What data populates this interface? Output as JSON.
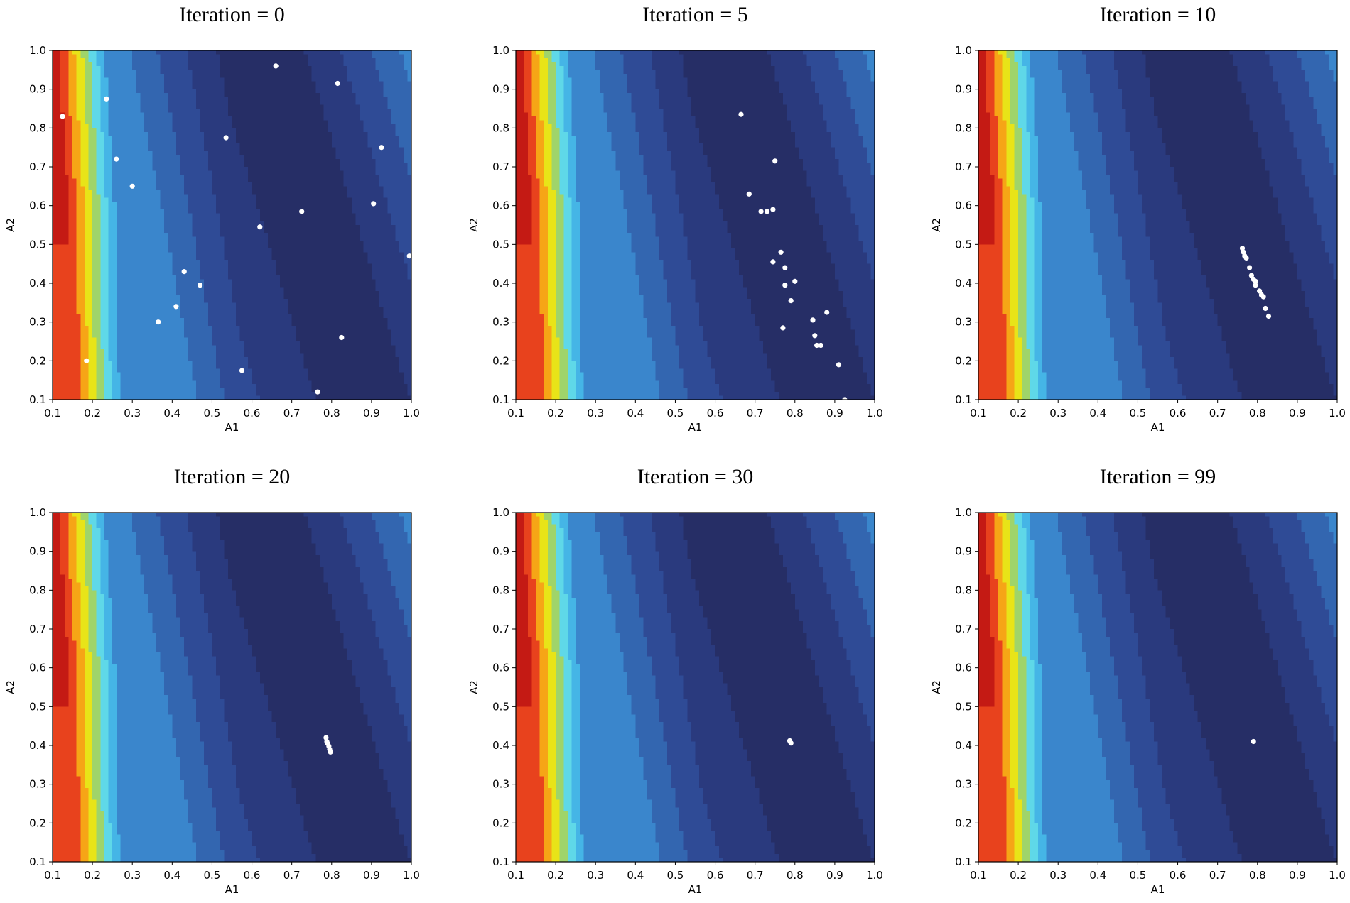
{
  "colors": {
    "background": "#ffffff",
    "point": "#ffffff",
    "colormap": [
      "#262e66",
      "#2a3a7e",
      "#2f4b96",
      "#3366b0",
      "#3a86cc",
      "#45b5e6",
      "#5fd8e8",
      "#9fd46a",
      "#e8e418",
      "#f6a516",
      "#e8421d",
      "#c41a14"
    ]
  },
  "chart_data": [
    {
      "type": "scatter",
      "background": "contour",
      "title": "Iteration = 0",
      "xlabel": "A1",
      "ylabel": "A2",
      "xlim": [
        0.1,
        1.0
      ],
      "ylim": [
        0.1,
        1.0
      ],
      "xticks": [
        "0.1",
        "0.2",
        "0.3",
        "0.4",
        "0.5",
        "0.6",
        "0.7",
        "0.8",
        "0.9",
        "1.0"
      ],
      "yticks": [
        "0.1",
        "0.2",
        "0.3",
        "0.4",
        "0.5",
        "0.6",
        "0.7",
        "0.8",
        "0.9",
        "1.0"
      ],
      "points": [
        [
          0.125,
          0.83
        ],
        [
          0.235,
          0.875
        ],
        [
          0.66,
          0.96
        ],
        [
          0.815,
          0.915
        ],
        [
          0.26,
          0.72
        ],
        [
          0.3,
          0.65
        ],
        [
          0.535,
          0.775
        ],
        [
          0.925,
          0.75
        ],
        [
          0.905,
          0.605
        ],
        [
          0.725,
          0.585
        ],
        [
          0.62,
          0.545
        ],
        [
          0.995,
          0.47
        ],
        [
          0.43,
          0.43
        ],
        [
          0.47,
          0.395
        ],
        [
          0.41,
          0.34
        ],
        [
          0.365,
          0.3
        ],
        [
          0.825,
          0.26
        ],
        [
          0.185,
          0.2
        ],
        [
          0.575,
          0.175
        ],
        [
          0.765,
          0.12
        ]
      ]
    },
    {
      "type": "scatter",
      "background": "contour",
      "title": "Iteration = 5",
      "xlabel": "A1",
      "ylabel": "A2",
      "xlim": [
        0.1,
        1.0
      ],
      "ylim": [
        0.1,
        1.0
      ],
      "xticks": [
        "0.1",
        "0.2",
        "0.3",
        "0.4",
        "0.5",
        "0.6",
        "0.7",
        "0.8",
        "0.9",
        "1.0"
      ],
      "yticks": [
        "0.1",
        "0.2",
        "0.3",
        "0.4",
        "0.5",
        "0.6",
        "0.7",
        "0.8",
        "0.9",
        "1.0"
      ],
      "points": [
        [
          0.665,
          0.835
        ],
        [
          0.75,
          0.715
        ],
        [
          0.685,
          0.63
        ],
        [
          0.715,
          0.585
        ],
        [
          0.73,
          0.585
        ],
        [
          0.745,
          0.59
        ],
        [
          0.765,
          0.48
        ],
        [
          0.745,
          0.455
        ],
        [
          0.775,
          0.44
        ],
        [
          0.8,
          0.405
        ],
        [
          0.775,
          0.395
        ],
        [
          0.79,
          0.355
        ],
        [
          0.88,
          0.325
        ],
        [
          0.845,
          0.305
        ],
        [
          0.77,
          0.285
        ],
        [
          0.85,
          0.265
        ],
        [
          0.855,
          0.24
        ],
        [
          0.865,
          0.24
        ],
        [
          0.91,
          0.19
        ],
        [
          0.925,
          0.1
        ]
      ]
    },
    {
      "type": "scatter",
      "background": "contour",
      "title": "Iteration = 10",
      "xlabel": "A1",
      "ylabel": "A2",
      "xlim": [
        0.1,
        1.0
      ],
      "ylim": [
        0.1,
        1.0
      ],
      "xticks": [
        "0.1",
        "0.2",
        "0.3",
        "0.4",
        "0.5",
        "0.6",
        "0.7",
        "0.8",
        "0.9",
        "1.0"
      ],
      "yticks": [
        "0.1",
        "0.2",
        "0.3",
        "0.4",
        "0.5",
        "0.6",
        "0.7",
        "0.8",
        "0.9",
        "1.0"
      ],
      "points": [
        [
          0.762,
          0.49
        ],
        [
          0.765,
          0.48
        ],
        [
          0.768,
          0.47
        ],
        [
          0.772,
          0.465
        ],
        [
          0.78,
          0.44
        ],
        [
          0.785,
          0.42
        ],
        [
          0.79,
          0.41
        ],
        [
          0.795,
          0.405
        ],
        [
          0.795,
          0.395
        ],
        [
          0.805,
          0.38
        ],
        [
          0.81,
          0.37
        ],
        [
          0.815,
          0.365
        ],
        [
          0.82,
          0.335
        ],
        [
          0.828,
          0.315
        ]
      ]
    },
    {
      "type": "scatter",
      "background": "contour",
      "title": "Iteration = 20",
      "xlabel": "A1",
      "ylabel": "A2",
      "xlim": [
        0.1,
        1.0
      ],
      "ylim": [
        0.1,
        1.0
      ],
      "xticks": [
        "0.1",
        "0.2",
        "0.3",
        "0.4",
        "0.5",
        "0.6",
        "0.7",
        "0.8",
        "0.9",
        "1.0"
      ],
      "yticks": [
        "0.1",
        "0.2",
        "0.3",
        "0.4",
        "0.5",
        "0.6",
        "0.7",
        "0.8",
        "0.9",
        "1.0"
      ],
      "points": [
        [
          0.786,
          0.42
        ],
        [
          0.788,
          0.41
        ],
        [
          0.79,
          0.405
        ],
        [
          0.793,
          0.398
        ],
        [
          0.795,
          0.39
        ],
        [
          0.797,
          0.383
        ]
      ]
    },
    {
      "type": "scatter",
      "background": "contour",
      "title": "Iteration = 30",
      "xlabel": "A1",
      "ylabel": "A2",
      "xlim": [
        0.1,
        1.0
      ],
      "ylim": [
        0.1,
        1.0
      ],
      "xticks": [
        "0.1",
        "0.2",
        "0.3",
        "0.4",
        "0.5",
        "0.6",
        "0.7",
        "0.8",
        "0.9",
        "1.0"
      ],
      "yticks": [
        "0.1",
        "0.2",
        "0.3",
        "0.4",
        "0.5",
        "0.6",
        "0.7",
        "0.8",
        "0.9",
        "1.0"
      ],
      "points": [
        [
          0.787,
          0.412
        ],
        [
          0.79,
          0.406
        ]
      ]
    },
    {
      "type": "scatter",
      "background": "contour",
      "title": "Iteration = 99",
      "xlabel": "A1",
      "ylabel": "A2",
      "xlim": [
        0.1,
        1.0
      ],
      "ylim": [
        0.1,
        1.0
      ],
      "xticks": [
        "0.1",
        "0.2",
        "0.3",
        "0.4",
        "0.5",
        "0.6",
        "0.7",
        "0.8",
        "0.9",
        "1.0"
      ],
      "yticks": [
        "0.1",
        "0.2",
        "0.3",
        "0.4",
        "0.5",
        "0.6",
        "0.7",
        "0.8",
        "0.9",
        "1.0"
      ],
      "points": [
        [
          0.79,
          0.41
        ]
      ]
    }
  ]
}
